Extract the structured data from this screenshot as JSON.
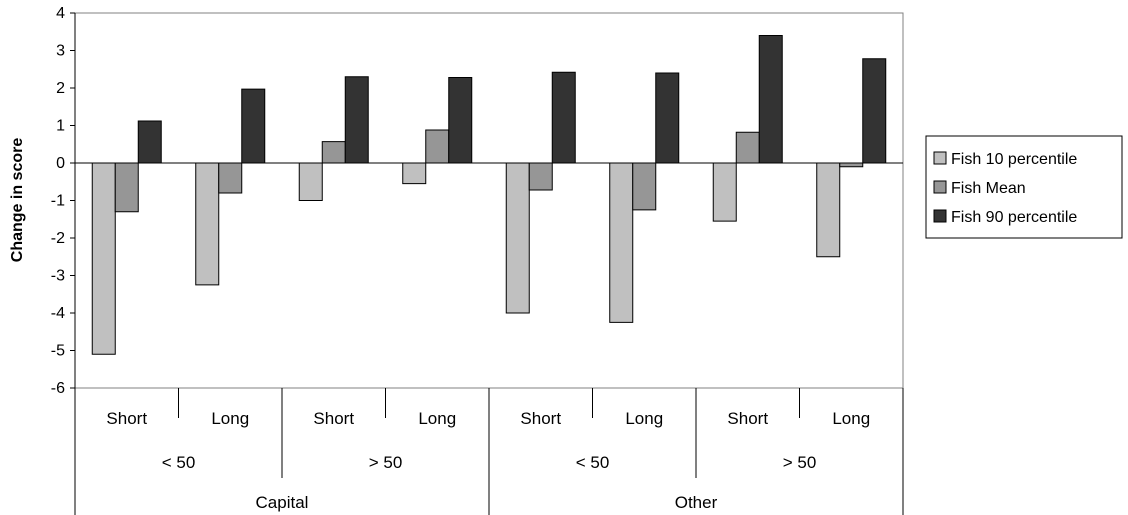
{
  "chart_data": {
    "type": "bar",
    "title": "",
    "xlabel": "",
    "ylabel": "Change in score",
    "ylim": [
      -6,
      4
    ],
    "yticks": [
      4,
      3,
      2,
      1,
      0,
      -1,
      -2,
      -3,
      -4,
      -5,
      -6
    ],
    "grid": false,
    "legend_position": "right",
    "categories": [
      "Short",
      "Long",
      "Short",
      "Long",
      "Short",
      "Long",
      "Short",
      "Long"
    ],
    "group_level2": [
      {
        "label": "< 50",
        "span": 2
      },
      {
        "label": "> 50",
        "span": 2
      },
      {
        "label": "< 50",
        "span": 2
      },
      {
        "label": "> 50",
        "span": 2
      }
    ],
    "group_level3": [
      {
        "label": "Capital",
        "span": 4
      },
      {
        "label": "Other",
        "span": 4
      }
    ],
    "series": [
      {
        "name": "Fish 10 percentile",
        "color": "#c0c0c0",
        "values": [
          -5.1,
          -3.25,
          -1.0,
          -0.55,
          -4.0,
          -4.25,
          -1.55,
          -2.5
        ]
      },
      {
        "name": "Fish Mean",
        "color": "#969696",
        "values": [
          -1.3,
          -0.8,
          0.57,
          0.88,
          -0.72,
          -1.25,
          0.82,
          -0.1
        ]
      },
      {
        "name": "Fish 90 percentile",
        "color": "#333333",
        "values": [
          1.12,
          1.97,
          2.3,
          2.28,
          2.42,
          2.4,
          3.4,
          2.78
        ]
      }
    ]
  }
}
